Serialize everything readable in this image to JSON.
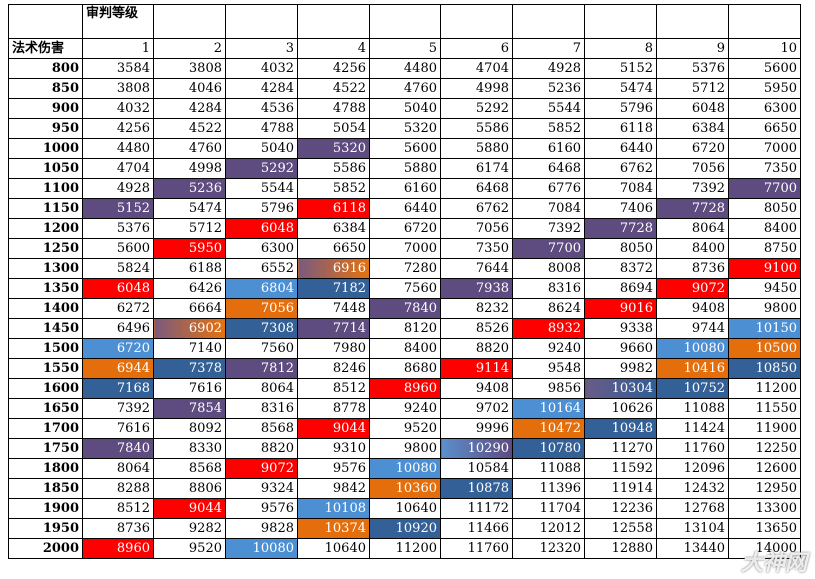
{
  "header": {
    "level_label": "审判等级",
    "damage_label": "法术伤害",
    "levels": [
      "1",
      "2",
      "3",
      "4",
      "5",
      "6",
      "7",
      "8",
      "9",
      "10"
    ]
  },
  "colors": {
    "purple": "#5e4b80",
    "red": "#fe0000",
    "orange": "#e46e0c",
    "blue": "#336197",
    "light_blue": "#4d8fd3"
  },
  "rows": [
    {
      "damage": "800",
      "values": [
        "3584",
        "3808",
        "4032",
        "4256",
        "4480",
        "4704",
        "4928",
        "5152",
        "5376",
        "5600"
      ],
      "colors": [
        "",
        "",
        "",
        "",
        "",
        "",
        "",
        "",
        "",
        ""
      ]
    },
    {
      "damage": "850",
      "values": [
        "3808",
        "4046",
        "4284",
        "4522",
        "4760",
        "4998",
        "5236",
        "5474",
        "5712",
        "5950"
      ],
      "colors": [
        "",
        "",
        "",
        "",
        "",
        "",
        "",
        "",
        "",
        ""
      ]
    },
    {
      "damage": "900",
      "values": [
        "4032",
        "4284",
        "4536",
        "4788",
        "5040",
        "5292",
        "5544",
        "5796",
        "6048",
        "6300"
      ],
      "colors": [
        "",
        "",
        "",
        "",
        "",
        "",
        "",
        "",
        "",
        ""
      ]
    },
    {
      "damage": "950",
      "values": [
        "4256",
        "4522",
        "4788",
        "5054",
        "5320",
        "5586",
        "5852",
        "6118",
        "6384",
        "6650"
      ],
      "colors": [
        "",
        "",
        "",
        "",
        "",
        "",
        "",
        "",
        "",
        ""
      ]
    },
    {
      "damage": "1000",
      "values": [
        "4480",
        "4760",
        "5040",
        "5320",
        "5600",
        "5880",
        "6160",
        "6440",
        "6720",
        "7000"
      ],
      "colors": [
        "",
        "",
        "",
        "purple",
        "",
        "",
        "",
        "",
        "",
        ""
      ]
    },
    {
      "damage": "1050",
      "values": [
        "4704",
        "4998",
        "5292",
        "5586",
        "5880",
        "6174",
        "6468",
        "6762",
        "7056",
        "7350"
      ],
      "colors": [
        "",
        "",
        "purple",
        "",
        "",
        "",
        "",
        "",
        "",
        ""
      ]
    },
    {
      "damage": "1100",
      "values": [
        "4928",
        "5236",
        "5544",
        "5852",
        "6160",
        "6468",
        "6776",
        "7084",
        "7392",
        "7700"
      ],
      "colors": [
        "",
        "purple",
        "",
        "",
        "",
        "",
        "",
        "",
        "",
        "purple"
      ]
    },
    {
      "damage": "1150",
      "values": [
        "5152",
        "5474",
        "5796",
        "6118",
        "6440",
        "6762",
        "7084",
        "7406",
        "7728",
        "8050"
      ],
      "colors": [
        "purple",
        "",
        "",
        "red",
        "",
        "",
        "",
        "",
        "purple",
        ""
      ]
    },
    {
      "damage": "1200",
      "values": [
        "5376",
        "5712",
        "6048",
        "6384",
        "6720",
        "7056",
        "7392",
        "7728",
        "8064",
        "8400"
      ],
      "colors": [
        "",
        "",
        "red",
        "",
        "",
        "",
        "",
        "purple",
        "",
        ""
      ]
    },
    {
      "damage": "1250",
      "values": [
        "5600",
        "5950",
        "6300",
        "6650",
        "7000",
        "7350",
        "7700",
        "8050",
        "8400",
        "8750"
      ],
      "colors": [
        "",
        "red",
        "",
        "",
        "",
        "",
        "purple",
        "",
        "",
        ""
      ]
    },
    {
      "damage": "1300",
      "values": [
        "5824",
        "6188",
        "6552",
        "6916",
        "7280",
        "7644",
        "8008",
        "8372",
        "8736",
        "9100"
      ],
      "colors": [
        "",
        "",
        "",
        "gp-o",
        "",
        "",
        "",
        "",
        "",
        "red"
      ]
    },
    {
      "damage": "1350",
      "values": [
        "6048",
        "6426",
        "6804",
        "7182",
        "7560",
        "7938",
        "8316",
        "8694",
        "9072",
        "9450"
      ],
      "colors": [
        "red",
        "",
        "lblue",
        "blue",
        "",
        "purple",
        "",
        "",
        "red",
        ""
      ]
    },
    {
      "damage": "1400",
      "values": [
        "6272",
        "6664",
        "7056",
        "7448",
        "7840",
        "8232",
        "8624",
        "9016",
        "9408",
        "9800"
      ],
      "colors": [
        "",
        "",
        "orange",
        "",
        "purple",
        "",
        "",
        "red",
        "",
        ""
      ]
    },
    {
      "damage": "1450",
      "values": [
        "6496",
        "6902",
        "7308",
        "7714",
        "8120",
        "8526",
        "8932",
        "9338",
        "9744",
        "10150"
      ],
      "colors": [
        "",
        "gp-o",
        "blue",
        "purple",
        "",
        "",
        "red",
        "",
        "",
        "lblue"
      ]
    },
    {
      "damage": "1500",
      "values": [
        "6720",
        "7140",
        "7560",
        "7980",
        "8400",
        "8820",
        "9240",
        "9660",
        "10080",
        "10500"
      ],
      "colors": [
        "lblue",
        "",
        "",
        "",
        "",
        "",
        "",
        "",
        "lblue",
        "orange"
      ]
    },
    {
      "damage": "1550",
      "values": [
        "6944",
        "7378",
        "7812",
        "8246",
        "8680",
        "9114",
        "9548",
        "9982",
        "10416",
        "10850"
      ],
      "colors": [
        "orange",
        "blue",
        "purple",
        "",
        "",
        "red",
        "",
        "",
        "orange",
        "blue"
      ]
    },
    {
      "damage": "1600",
      "values": [
        "7168",
        "7616",
        "8064",
        "8512",
        "8960",
        "9408",
        "9856",
        "10304",
        "10752",
        "11200"
      ],
      "colors": [
        "blue",
        "",
        "",
        "",
        "red",
        "",
        "",
        "gp-b",
        "blue",
        ""
      ]
    },
    {
      "damage": "1650",
      "values": [
        "7392",
        "7854",
        "8316",
        "8778",
        "9240",
        "9702",
        "10164",
        "10626",
        "11088",
        "11550"
      ],
      "colors": [
        "",
        "purple",
        "",
        "",
        "",
        "",
        "lblue",
        "",
        "",
        ""
      ]
    },
    {
      "damage": "1700",
      "values": [
        "7616",
        "8092",
        "8568",
        "9044",
        "9520",
        "9996",
        "10472",
        "10948",
        "11424",
        "11900"
      ],
      "colors": [
        "",
        "",
        "",
        "red",
        "",
        "",
        "orange",
        "blue",
        "",
        ""
      ]
    },
    {
      "damage": "1750",
      "values": [
        "7840",
        "8330",
        "8820",
        "9310",
        "9800",
        "10290",
        "10780",
        "11270",
        "11760",
        "12250"
      ],
      "colors": [
        "purple",
        "",
        "",
        "",
        "",
        "gb-p",
        "blue",
        "",
        "",
        ""
      ]
    },
    {
      "damage": "1800",
      "values": [
        "8064",
        "8568",
        "9072",
        "9576",
        "10080",
        "10584",
        "11088",
        "11592",
        "12096",
        "12600"
      ],
      "colors": [
        "",
        "",
        "red",
        "",
        "lblue",
        "",
        "",
        "",
        "",
        ""
      ]
    },
    {
      "damage": "1850",
      "values": [
        "8288",
        "8806",
        "9324",
        "9842",
        "10360",
        "10878",
        "11396",
        "11914",
        "12432",
        "12950"
      ],
      "colors": [
        "",
        "",
        "",
        "",
        "orange",
        "blue",
        "",
        "",
        "",
        ""
      ]
    },
    {
      "damage": "1900",
      "values": [
        "8512",
        "9044",
        "9576",
        "10108",
        "10640",
        "11172",
        "11704",
        "12236",
        "12768",
        "13300"
      ],
      "colors": [
        "",
        "red",
        "",
        "lblue",
        "",
        "",
        "",
        "",
        "",
        ""
      ]
    },
    {
      "damage": "1950",
      "values": [
        "8736",
        "9282",
        "9828",
        "10374",
        "10920",
        "11466",
        "12012",
        "12558",
        "13104",
        "13650"
      ],
      "colors": [
        "",
        "",
        "",
        "orange",
        "blue",
        "",
        "",
        "",
        "",
        ""
      ]
    },
    {
      "damage": "2000",
      "values": [
        "8960",
        "9520",
        "10080",
        "10640",
        "11200",
        "11760",
        "12320",
        "12880",
        "13440",
        "14000"
      ],
      "colors": [
        "red",
        "",
        "lblue",
        "",
        "",
        "",
        "",
        "",
        "",
        ""
      ]
    }
  ]
}
